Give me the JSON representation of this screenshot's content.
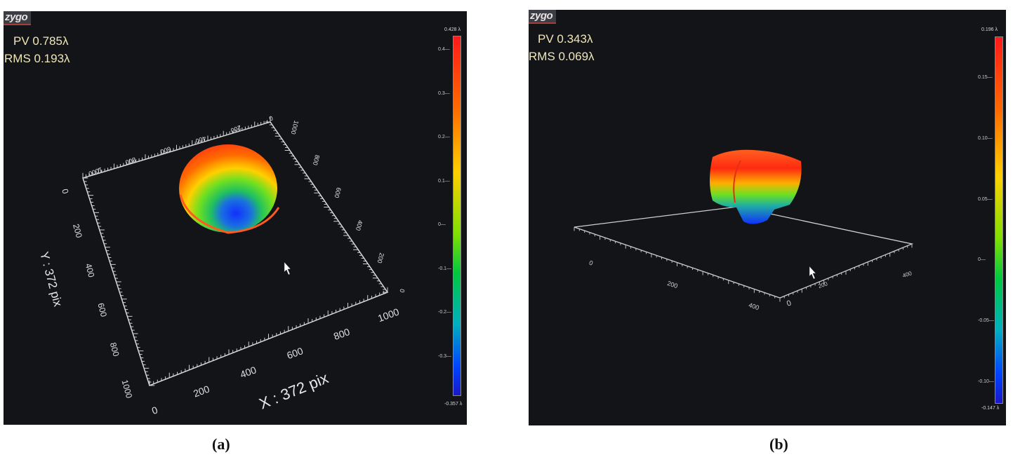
{
  "panel_a": {
    "brand": "zygo",
    "pv": "PV 0.785λ",
    "rms": "RMS 0.193λ",
    "x_label": "X : 372 pix",
    "y_label": "Y : 372 pix",
    "front_ticks": [
      "0",
      "200",
      "400",
      "600",
      "800",
      "1000"
    ],
    "left_ticks": [
      "0",
      "200",
      "400",
      "600",
      "800",
      "1000"
    ],
    "back_ticks": [
      "1000",
      "800",
      "600",
      "400",
      "200",
      "0"
    ],
    "right_ticks": [
      "1000",
      "800",
      "600",
      "400",
      "200",
      "0"
    ],
    "scale_max": "0.428 λ",
    "scale_min": "-0.357 λ",
    "scale_ticks": [
      "0.4",
      "0.3",
      "0.2",
      "0.1",
      "0",
      "-0.1",
      "-0.2",
      "-0.3"
    ]
  },
  "panel_b": {
    "brand": "zygo",
    "pv": "PV 0.343λ",
    "rms": "RMS 0.069λ",
    "front_ticks": [
      "0",
      "200",
      "400"
    ],
    "left_ticks": [
      "0",
      "200",
      "400"
    ],
    "right_ticks": [
      "200",
      "400"
    ],
    "scale_max": "0.196 λ",
    "scale_min": "-0.147 λ",
    "scale_ticks": [
      "0.15",
      "0.10",
      "0.05",
      "0",
      "-0.05",
      "-0.10"
    ]
  },
  "captions": {
    "a": "(a)",
    "b": "(b)"
  },
  "colors": {
    "background": "#121418",
    "metric_text": "#f0e6b8",
    "axis": "#d9d9d9",
    "brand_underline": "#a63e3e"
  }
}
